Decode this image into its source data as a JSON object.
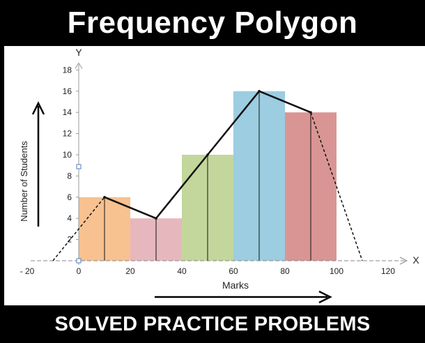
{
  "header": {
    "title": "Frequency Polygon"
  },
  "footer": {
    "subtitle": "SOLVED PRACTICE PROBLEMS"
  },
  "chart_data": {
    "type": "bar",
    "title": "Frequency Polygon",
    "xlabel": "Marks",
    "ylabel": "Number of Students",
    "x_axis_letter": "X",
    "y_axis_letter": "Y",
    "xlim": [
      -20,
      120
    ],
    "ylim": [
      0,
      18
    ],
    "x_ticks": [
      -20,
      0,
      20,
      40,
      60,
      80,
      100,
      120
    ],
    "x_tick_labels": [
      "- 20",
      "0",
      "20",
      "40",
      "60",
      "80",
      "100",
      "120"
    ],
    "y_ticks": [
      2,
      4,
      6,
      8,
      10,
      12,
      14,
      16,
      18
    ],
    "bars": [
      {
        "from": 0,
        "to": 20,
        "value": 6,
        "color": "#f8c190"
      },
      {
        "from": 20,
        "to": 40,
        "value": 4,
        "color": "#e6b8bd"
      },
      {
        "from": 40,
        "to": 60,
        "value": 10,
        "color": "#c3d69b"
      },
      {
        "from": 60,
        "to": 80,
        "value": 16,
        "color": "#9ccde0"
      },
      {
        "from": 80,
        "to": 100,
        "value": 14,
        "color": "#d99594"
      }
    ],
    "polygon": [
      {
        "x": 10,
        "y": 6
      },
      {
        "x": 30,
        "y": 4
      },
      {
        "x": 50,
        "y": 10
      },
      {
        "x": 70,
        "y": 16
      },
      {
        "x": 90,
        "y": 14
      }
    ],
    "polygon_start": {
      "x": -10,
      "y": 0
    },
    "polygon_end": {
      "x": 110,
      "y": 0
    },
    "grid": false
  }
}
